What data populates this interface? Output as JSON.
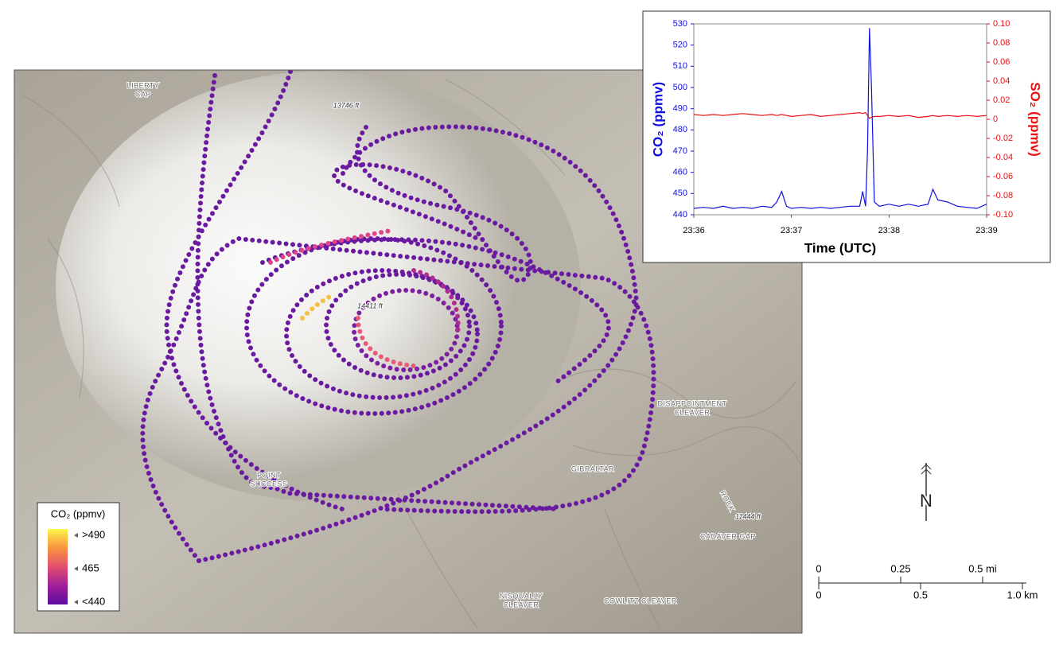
{
  "map": {
    "place_labels": [
      {
        "lines": [
          "LIBERTY",
          "CAP"
        ]
      },
      {
        "lines": [
          "13746 ft"
        ]
      },
      {
        "lines": [
          "14411 ft"
        ]
      },
      {
        "lines": [
          "DISAPPOINTMENT",
          "CLEAVER"
        ]
      },
      {
        "lines": [
          "POINT",
          "SUCCESS"
        ]
      },
      {
        "lines": [
          "GIBRALTAR",
          "ROCK"
        ]
      },
      {
        "lines": [
          "11444 ft"
        ]
      },
      {
        "lines": [
          "CADAVER GAP"
        ]
      },
      {
        "lines": [
          "NISQUALLY",
          "CLEAVER"
        ]
      },
      {
        "lines": [
          "COWLITZ CLEAVER"
        ]
      }
    ],
    "legend": {
      "title": "CO₂ (ppmv)",
      "labels": [
        ">490",
        "465",
        "<440"
      ],
      "colors": [
        "#fcf64a",
        "#f89540",
        "#e24f6e",
        "#a11e9a",
        "#5a0ca0"
      ]
    },
    "north": "N",
    "scale_bar": {
      "miles": [
        "0",
        "0.25",
        "0.5 mi"
      ],
      "km": [
        "0",
        "0.5",
        "1.0 km"
      ]
    }
  },
  "chart_data": {
    "type": "line",
    "x_label": "Time (UTC)",
    "y_label": "CO₂ (ppmv)",
    "y2_label": "SO₂ (ppmv)",
    "x": [
      36,
      36.1,
      36.2,
      36.3,
      36.4,
      36.5,
      36.6,
      36.7,
      36.8,
      36.85,
      36.9,
      36.95,
      37,
      37.1,
      37.2,
      37.3,
      37.4,
      37.5,
      37.6,
      37.7,
      37.73,
      37.76,
      37.78,
      37.8,
      37.82,
      37.85,
      37.9,
      38,
      38.1,
      38.2,
      38.3,
      38.4,
      38.45,
      38.5,
      38.6,
      38.7,
      38.8,
      38.9,
      39
    ],
    "xlim": [
      36,
      39
    ],
    "xticks": [
      {
        "value": 36,
        "label": "23:36"
      },
      {
        "value": 37,
        "label": "23:37"
      },
      {
        "value": 38,
        "label": "23:38"
      },
      {
        "value": 39,
        "label": "23:39"
      }
    ],
    "ylim": [
      440,
      530
    ],
    "yticks": [
      440,
      450,
      460,
      470,
      480,
      490,
      500,
      510,
      520,
      530
    ],
    "y2lim": [
      -0.1,
      0.1
    ],
    "y2ticks": [
      {
        "value": -0.1,
        "label": "-0.10"
      },
      -0.08,
      -0.06,
      -0.04,
      -0.02,
      0,
      0.02,
      0.04,
      0.06,
      0.08,
      {
        "value": 0.1,
        "label": "0.10"
      }
    ],
    "series": [
      {
        "name": "CO₂",
        "color": "#1010e0",
        "values": [
          443,
          443.5,
          443,
          444,
          443,
          443.5,
          443,
          444,
          443.5,
          446,
          451,
          444,
          443,
          443.5,
          443,
          443.5,
          443,
          443.5,
          444,
          444,
          451,
          444,
          470,
          528,
          500,
          446,
          444,
          445,
          444,
          445,
          444,
          445,
          452,
          447,
          446,
          444,
          443.5,
          443,
          445
        ]
      },
      {
        "name": "SO₂",
        "color": "#e81010",
        "axis": "y2",
        "values": [
          0.005,
          0.004,
          0.005,
          0.004,
          0.005,
          0.006,
          0.005,
          0.004,
          0.005,
          0.004,
          0.005,
          0.004,
          0.003,
          0.004,
          0.005,
          0.003,
          0.004,
          0.005,
          0.006,
          0.007,
          0.006,
          0.007,
          0.004,
          0.001,
          0.002,
          0.003,
          0.003,
          0.004,
          0.003,
          0.004,
          0.002,
          0.003,
          0.004,
          0.003,
          0.004,
          0.003,
          0.004,
          0.003,
          0.004
        ]
      }
    ]
  }
}
